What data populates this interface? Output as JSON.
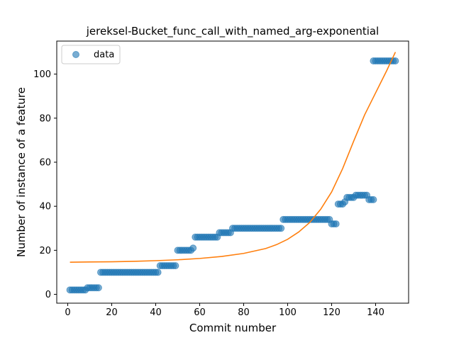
{
  "chart_data": {
    "type": "scatter",
    "title": "jereksel-Bucket_func_call_with_named_arg-exponential",
    "xlabel": "Commit number",
    "ylabel": "Number of instance of a feature",
    "xlim": [
      -5,
      155
    ],
    "ylim": [
      -4,
      115
    ],
    "xticks": [
      0,
      20,
      40,
      60,
      80,
      100,
      120,
      140
    ],
    "yticks": [
      0,
      20,
      40,
      60,
      80,
      100
    ],
    "grid": false,
    "legend": {
      "placement": "top-left",
      "entries": [
        "data"
      ]
    },
    "colors": {
      "data": "#1f77b4",
      "fit": "#ff7f0e"
    },
    "series": [
      {
        "name": "data",
        "kind": "scatter",
        "steps": [
          {
            "from": 1,
            "to": 7,
            "y": 2
          },
          {
            "from": 8,
            "to": 8,
            "y": 2
          },
          {
            "from": 9,
            "to": 14,
            "y": 3
          },
          {
            "from": 15,
            "to": 41,
            "y": 10
          },
          {
            "from": 42,
            "to": 49,
            "y": 13
          },
          {
            "from": 50,
            "to": 56,
            "y": 20
          },
          {
            "from": 57,
            "to": 57,
            "y": 21
          },
          {
            "from": 58,
            "to": 68,
            "y": 26
          },
          {
            "from": 69,
            "to": 74,
            "y": 28
          },
          {
            "from": 75,
            "to": 97,
            "y": 30
          },
          {
            "from": 98,
            "to": 119,
            "y": 34
          },
          {
            "from": 120,
            "to": 122,
            "y": 32
          },
          {
            "from": 123,
            "to": 125,
            "y": 41
          },
          {
            "from": 126,
            "to": 126,
            "y": 42
          },
          {
            "from": 127,
            "to": 130,
            "y": 44
          },
          {
            "from": 131,
            "to": 136,
            "y": 45
          },
          {
            "from": 137,
            "to": 139,
            "y": 43
          },
          {
            "from": 139,
            "to": 149,
            "y": 106
          }
        ]
      },
      {
        "kind": "line",
        "points": [
          [
            1,
            14.6
          ],
          [
            10,
            14.7
          ],
          [
            20,
            14.8
          ],
          [
            30,
            15.0
          ],
          [
            40,
            15.3
          ],
          [
            50,
            15.7
          ],
          [
            60,
            16.3
          ],
          [
            70,
            17.2
          ],
          [
            80,
            18.6
          ],
          [
            90,
            20.8
          ],
          [
            95,
            22.6
          ],
          [
            100,
            25.0
          ],
          [
            105,
            28.3
          ],
          [
            110,
            32.6
          ],
          [
            115,
            38.6
          ],
          [
            120,
            46.5
          ],
          [
            125,
            57.1
          ],
          [
            130,
            69.5
          ],
          [
            135,
            81.5
          ],
          [
            140,
            91.5
          ],
          [
            145,
            101.5
          ],
          [
            149,
            110.0
          ]
        ]
      }
    ]
  }
}
